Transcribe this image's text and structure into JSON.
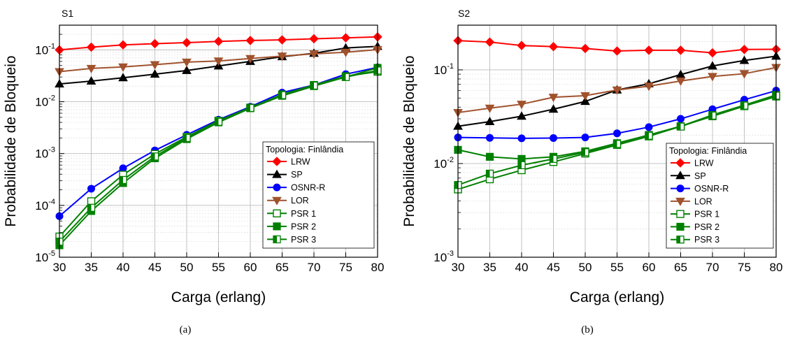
{
  "figure": {
    "captions": [
      "(a)",
      "(b)"
    ]
  },
  "colors": {
    "LRW": "#ff0000",
    "SP": "#000000",
    "OSNR-R": "#0000ff",
    "LOR": "#a0522d",
    "PSR": "#008000"
  },
  "chart_data": [
    {
      "type": "line",
      "title": "S1",
      "xlabel": "Carga (erlang)",
      "ylabel": "Probabilidade de Bloqueio",
      "yscale": "log",
      "xlim": [
        30,
        80
      ],
      "ylim": [
        1e-05,
        0.3
      ],
      "x": [
        30,
        35,
        40,
        45,
        50,
        55,
        60,
        65,
        70,
        75,
        80
      ],
      "xticks": [
        "30",
        "35",
        "40",
        "45",
        "50",
        "55",
        "60",
        "65",
        "70",
        "75",
        "80"
      ],
      "yticks": [
        {
          "value": 1e-05,
          "base": "10",
          "exp": "-5"
        },
        {
          "value": 0.0001,
          "base": "10",
          "exp": "-4"
        },
        {
          "value": 0.001,
          "base": "10",
          "exp": "-3"
        },
        {
          "value": 0.01,
          "base": "10",
          "exp": "-2"
        },
        {
          "value": 0.1,
          "base": "10",
          "exp": "-1"
        }
      ],
      "grid": true,
      "legend_title": "Topologia: Finlândia",
      "legend_position": "lower-right",
      "caption": "(a)",
      "series": [
        {
          "name": "LRW",
          "color": "#ff0000",
          "marker": "diamond",
          "values": [
            0.1,
            0.113,
            0.125,
            0.132,
            0.138,
            0.146,
            0.152,
            0.156,
            0.164,
            0.171,
            0.178
          ]
        },
        {
          "name": "SP",
          "color": "#000000",
          "marker": "triangle-up",
          "values": [
            0.022,
            0.025,
            0.029,
            0.034,
            0.04,
            0.049,
            0.06,
            0.074,
            0.086,
            0.109,
            0.117
          ]
        },
        {
          "name": "OSNR-R",
          "color": "#0000ff",
          "marker": "circle",
          "values": [
            6.2e-05,
            0.00021,
            0.00052,
            0.00115,
            0.0023,
            0.0045,
            0.008,
            0.015,
            0.021,
            0.034,
            0.046
          ]
        },
        {
          "name": "LOR",
          "color": "#a0522d",
          "marker": "triangle-down",
          "values": [
            0.038,
            0.044,
            0.047,
            0.052,
            0.058,
            0.061,
            0.068,
            0.076,
            0.084,
            0.09,
            0.101
          ]
        },
        {
          "name": "PSR 1",
          "color": "#008000",
          "marker": "square-open",
          "values": [
            2.5e-05,
            0.00012,
            0.00039,
            0.00098,
            0.0021,
            0.0043,
            0.0077,
            0.0138,
            0.021,
            0.031,
            0.038
          ]
        },
        {
          "name": "PSR 2",
          "color": "#008000",
          "marker": "square-filled",
          "values": [
            1.7e-05,
            7.8e-05,
            0.00027,
            0.00081,
            0.0019,
            0.004,
            0.0075,
            0.013,
            0.02,
            0.03,
            0.045
          ]
        },
        {
          "name": "PSR 3",
          "color": "#008000",
          "marker": "square-half",
          "values": [
            2e-05,
            9e-05,
            0.00031,
            0.00088,
            0.002,
            0.0041,
            0.0076,
            0.0134,
            0.0205,
            0.03,
            0.04
          ]
        }
      ]
    },
    {
      "type": "line",
      "title": "S2",
      "xlabel": "Carga (erlang)",
      "ylabel": "Probabilidade de Bloqueio",
      "yscale": "log",
      "xlim": [
        30,
        80
      ],
      "ylim": [
        0.001,
        0.3
      ],
      "x": [
        30,
        35,
        40,
        45,
        50,
        55,
        60,
        65,
        70,
        75,
        80
      ],
      "xticks": [
        "30",
        "35",
        "40",
        "45",
        "50",
        "55",
        "60",
        "65",
        "70",
        "75",
        "80"
      ],
      "yticks": [
        {
          "value": 0.001,
          "base": "10",
          "exp": "-3"
        },
        {
          "value": 0.01,
          "base": "10",
          "exp": "-2"
        },
        {
          "value": 0.1,
          "base": "10",
          "exp": "-1"
        }
      ],
      "grid": true,
      "legend_title": "Topologia: Finlândia",
      "legend_position": "lower-right",
      "caption": "(b)",
      "series": [
        {
          "name": "LRW",
          "color": "#ff0000",
          "marker": "diamond",
          "values": [
            0.205,
            0.198,
            0.182,
            0.177,
            0.169,
            0.159,
            0.162,
            0.162,
            0.152,
            0.165,
            0.166
          ]
        },
        {
          "name": "SP",
          "color": "#000000",
          "marker": "triangle-up",
          "values": [
            0.025,
            0.028,
            0.032,
            0.038,
            0.046,
            0.061,
            0.071,
            0.089,
            0.11,
            0.126,
            0.14
          ]
        },
        {
          "name": "OSNR-R",
          "color": "#0000ff",
          "marker": "circle",
          "values": [
            0.019,
            0.0188,
            0.0186,
            0.0187,
            0.019,
            0.021,
            0.0245,
            0.03,
            0.038,
            0.048,
            0.06
          ]
        },
        {
          "name": "LOR",
          "color": "#a0522d",
          "marker": "triangle-down",
          "values": [
            0.035,
            0.039,
            0.043,
            0.051,
            0.053,
            0.061,
            0.067,
            0.076,
            0.085,
            0.091,
            0.106
          ]
        },
        {
          "name": "PSR 1",
          "color": "#008000",
          "marker": "square-open",
          "values": [
            0.0053,
            0.0068,
            0.0085,
            0.0104,
            0.0128,
            0.0158,
            0.0195,
            0.025,
            0.032,
            0.041,
            0.052
          ]
        },
        {
          "name": "PSR 2",
          "color": "#008000",
          "marker": "square-filled",
          "values": [
            0.014,
            0.0118,
            0.0112,
            0.0118,
            0.0135,
            0.0165,
            0.0202,
            0.025,
            0.033,
            0.042,
            0.054
          ]
        },
        {
          "name": "PSR 3",
          "color": "#008000",
          "marker": "square-half",
          "values": [
            0.0059,
            0.0078,
            0.0096,
            0.0112,
            0.0132,
            0.0162,
            0.0198,
            0.0248,
            0.0325,
            0.0415,
            0.053
          ]
        }
      ]
    }
  ]
}
